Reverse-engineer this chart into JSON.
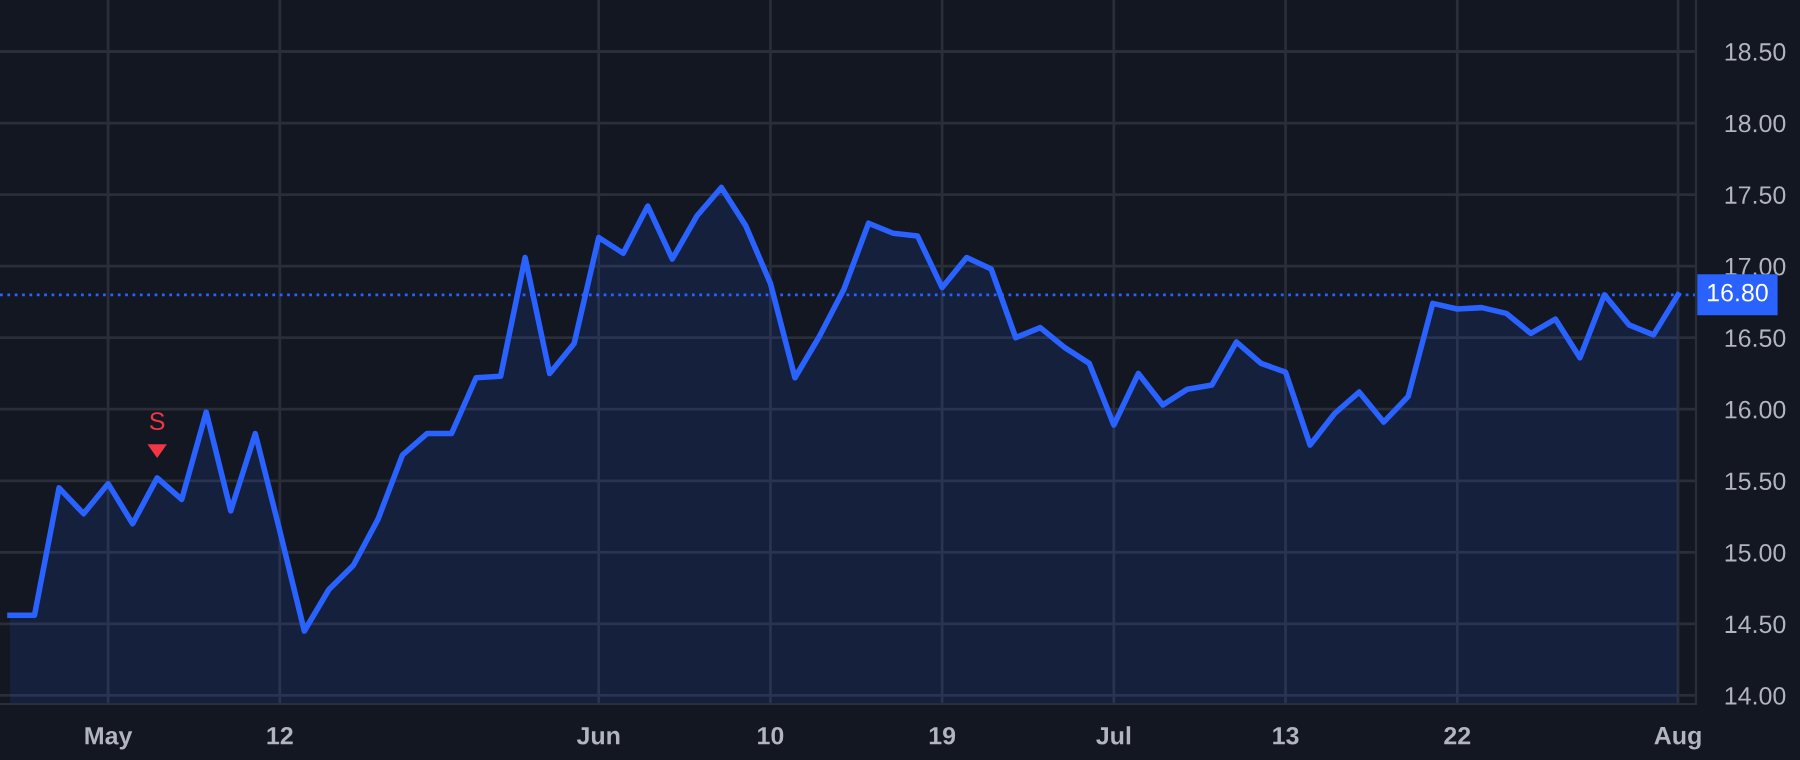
{
  "chart_data": {
    "type": "area",
    "categories": [
      null,
      null,
      null,
      null,
      "May",
      null,
      null,
      null,
      null,
      null,
      null,
      "12",
      null,
      null,
      null,
      null,
      null,
      null,
      null,
      null,
      null,
      null,
      null,
      null,
      "Jun",
      null,
      null,
      null,
      null,
      null,
      null,
      "10",
      null,
      null,
      null,
      null,
      null,
      null,
      "19",
      null,
      null,
      null,
      null,
      null,
      null,
      "Jul",
      null,
      null,
      null,
      null,
      null,
      null,
      "13",
      null,
      null,
      null,
      null,
      null,
      null,
      "22",
      null,
      null,
      null,
      null,
      null,
      null,
      null,
      null,
      "Aug"
    ],
    "series": [
      {
        "color": "#2962ff",
        "values": [
          14.56,
          14.56,
          15.45,
          15.27,
          15.48,
          15.2,
          15.52,
          15.37,
          15.98,
          15.29,
          15.83,
          15.15,
          14.45,
          14.74,
          14.91,
          15.23,
          15.68,
          15.83,
          15.83,
          16.22,
          16.23,
          17.06,
          16.25,
          16.46,
          17.2,
          17.09,
          17.42,
          17.05,
          17.35,
          17.55,
          17.28,
          16.88,
          16.22,
          16.51,
          16.84,
          17.3,
          17.23,
          17.21,
          16.85,
          17.06,
          16.98,
          16.5,
          16.57,
          16.43,
          16.32,
          15.89,
          16.25,
          16.03,
          16.14,
          16.17,
          16.47,
          16.32,
          16.26,
          15.75,
          15.97,
          16.12,
          15.91,
          16.09,
          16.74,
          16.7,
          16.71,
          16.67,
          16.53,
          16.63,
          16.36,
          16.8,
          16.59,
          16.52,
          16.8
        ]
      }
    ],
    "ylim": [
      13.94,
      18.86
    ],
    "yticks": [
      {
        "value": 14.0,
        "label": "14.00"
      },
      {
        "value": 14.5,
        "label": "14.50"
      },
      {
        "value": 15.0,
        "label": "15.00"
      },
      {
        "value": 15.5,
        "label": "15.50"
      },
      {
        "value": 16.0,
        "label": "16.00"
      },
      {
        "value": 16.5,
        "label": "16.50"
      },
      {
        "value": 17.0,
        "label": "17.00"
      },
      {
        "value": 17.5,
        "label": "17.50"
      },
      {
        "value": 18.0,
        "label": "18.00"
      },
      {
        "value": 18.5,
        "label": "18.50"
      }
    ],
    "ref_lines": [
      {
        "axis": "y",
        "value": 16.8,
        "label": "16.80",
        "color": "#2962ff",
        "line_style": "dotted"
      }
    ],
    "annotations": [
      {
        "text": "S",
        "y": 15.52
      }
    ],
    "grid": true,
    "legend": false,
    "marker": "none",
    "line_style": "solid"
  }
}
